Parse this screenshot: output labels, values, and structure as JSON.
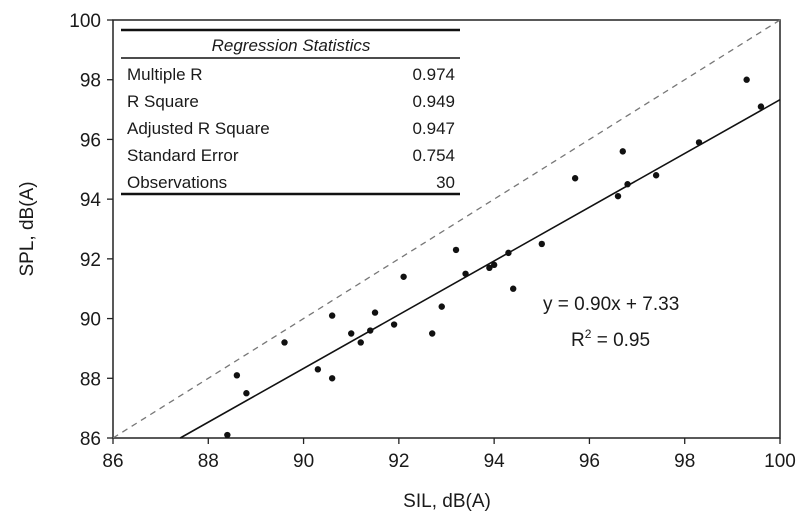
{
  "chart_data": {
    "type": "scatter",
    "xlabel": "SIL, dB(A)",
    "ylabel": "SPL, dB(A)",
    "xlim": [
      86,
      100
    ],
    "ylim": [
      86,
      100
    ],
    "x_ticks": [
      "86",
      "88",
      "90",
      "92",
      "94",
      "96",
      "98",
      "100"
    ],
    "y_ticks": [
      "86",
      "88",
      "90",
      "92",
      "94",
      "96",
      "98",
      "100"
    ],
    "grid": false,
    "series": [
      {
        "x": [
          88.4,
          88.6,
          88.8,
          89.6,
          90.3,
          90.6,
          90.6,
          91.2,
          91.4,
          91.5,
          91.9,
          92.1,
          92.7,
          92.9,
          93.2,
          93.4,
          93.9,
          94.3,
          94.4,
          95.0,
          95.7,
          96.6,
          96.7,
          96.8,
          97.4,
          98.3,
          99.3,
          99.6,
          94.0,
          91.0
        ],
        "y": [
          86.1,
          88.1,
          87.5,
          89.2,
          88.3,
          90.1,
          88.0,
          89.2,
          89.6,
          90.2,
          89.8,
          91.4,
          89.5,
          90.4,
          92.3,
          91.5,
          91.7,
          92.2,
          91.0,
          92.5,
          94.7,
          94.1,
          95.6,
          94.5,
          94.8,
          95.9,
          98.0,
          97.1,
          91.8,
          89.5
        ]
      }
    ],
    "trendline": {
      "slope": 0.9,
      "intercept": 7.33,
      "style": "solid"
    },
    "reference_line": {
      "slope": 1,
      "intercept": 0,
      "style": "dashed"
    },
    "annotations": {
      "equation": "y = 0.90x + 7.33",
      "r_squared_prefix": "R",
      "r_squared_sup": "2",
      "r_squared_value": " = 0.95"
    },
    "regression_stats": {
      "title": "Regression Statistics",
      "rows": [
        {
          "label": "Multiple R",
          "value": "0.974"
        },
        {
          "label": "R Square",
          "value": "0.949"
        },
        {
          "label": "Adjusted R Square",
          "value": "0.947"
        },
        {
          "label": "Standard Error",
          "value": "0.754"
        },
        {
          "label": "Observations",
          "value": "30"
        }
      ]
    }
  }
}
